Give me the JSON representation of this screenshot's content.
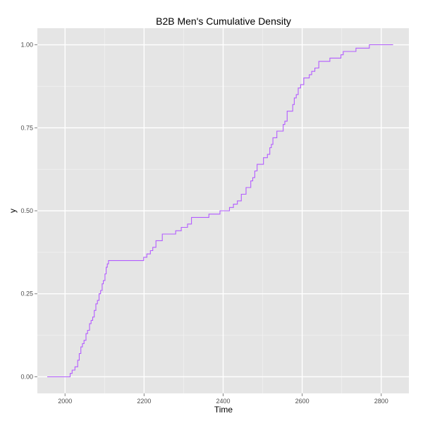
{
  "chart_data": {
    "type": "line",
    "title": "B2B Men's Cumulative Density",
    "xlabel": "Time",
    "ylabel": "y",
    "xlim": [
      1930,
      2870
    ],
    "ylim": [
      -0.05,
      1.05
    ],
    "x_ticks": [
      2000,
      2200,
      2400,
      2600,
      2800
    ],
    "x_tick_labels": [
      "2000",
      "2200",
      "2400",
      "2600",
      "2800"
    ],
    "y_ticks": [
      0,
      0.25,
      0.5,
      0.75,
      1.0
    ],
    "y_tick_labels": [
      "0.00",
      "0.25",
      "0.50",
      "0.75",
      "1.00"
    ],
    "grid": true,
    "legend": "none",
    "step": true,
    "colors": {
      "panel": "#e5e5e5",
      "grid_major": "#ffffff",
      "grid_minor": "#f2f2f2",
      "line": "#b35cff"
    },
    "series": [
      {
        "x": [
          1955,
          2013,
          2018,
          2025,
          2032,
          2036,
          2040,
          2044,
          2048,
          2053,
          2057,
          2062,
          2066,
          2070,
          2074,
          2078,
          2082,
          2086,
          2090,
          2094,
          2097,
          2101,
          2104,
          2107,
          2110,
          2113,
          2118,
          2199,
          2207,
          2216,
          2222,
          2230,
          2238,
          2246,
          2268,
          2280,
          2294,
          2310,
          2320,
          2364,
          2392,
          2416,
          2426,
          2436,
          2446,
          2458,
          2470,
          2475,
          2480,
          2486,
          2492,
          2502,
          2512,
          2518,
          2522,
          2526,
          2530,
          2536,
          2552,
          2556,
          2562,
          2576,
          2580,
          2585,
          2590,
          2596,
          2604,
          2618,
          2624,
          2632,
          2642,
          2670,
          2698,
          2704,
          2736,
          2770,
          2830
        ],
        "y": [
          0.0,
          0.01,
          0.02,
          0.03,
          0.05,
          0.07,
          0.09,
          0.1,
          0.11,
          0.13,
          0.14,
          0.16,
          0.17,
          0.18,
          0.2,
          0.22,
          0.23,
          0.25,
          0.26,
          0.28,
          0.29,
          0.31,
          0.33,
          0.34,
          0.35,
          0.35,
          0.35,
          0.36,
          0.37,
          0.38,
          0.39,
          0.41,
          0.41,
          0.43,
          0.43,
          0.44,
          0.45,
          0.46,
          0.48,
          0.49,
          0.5,
          0.51,
          0.52,
          0.53,
          0.55,
          0.57,
          0.59,
          0.6,
          0.62,
          0.64,
          0.64,
          0.66,
          0.67,
          0.69,
          0.7,
          0.72,
          0.72,
          0.74,
          0.76,
          0.77,
          0.8,
          0.82,
          0.84,
          0.85,
          0.87,
          0.88,
          0.9,
          0.91,
          0.92,
          0.93,
          0.95,
          0.96,
          0.97,
          0.98,
          0.99,
          1.0,
          1.0
        ]
      }
    ]
  }
}
